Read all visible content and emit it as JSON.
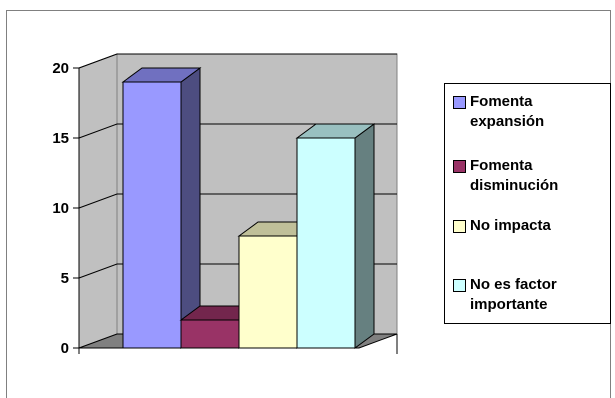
{
  "chart_data": {
    "type": "bar",
    "title": "",
    "xlabel": "",
    "ylabel": "",
    "ylim": [
      0,
      20
    ],
    "yticks": [
      "0",
      "5",
      "10",
      "15",
      "20"
    ],
    "categories": [
      "Fomenta expansión",
      "Fomenta disminución",
      "No impacta",
      "No es factor importante"
    ],
    "values": [
      19,
      2,
      8,
      15
    ],
    "grid": true,
    "legend_position": "right",
    "colors": {
      "front": [
        "#9999FF",
        "#993366",
        "#FFFFCC",
        "#CCFFFF"
      ],
      "side": [
        "#4D4D80",
        "#4D1A33",
        "#808066",
        "#668080"
      ],
      "top": [
        "#7070C0",
        "#73264D",
        "#C0C099",
        "#99C0C0"
      ],
      "wall": "#C0C0C0",
      "floor": "#808080"
    }
  },
  "legend": {
    "items": [
      {
        "label": "Fomenta expansión",
        "color": "#9999FF"
      },
      {
        "label": "Fomenta disminución",
        "color": "#993366"
      },
      {
        "label": "No impacta",
        "color": "#FFFFCC"
      },
      {
        "label": "No es factor importante",
        "color": "#CCFFFF"
      }
    ]
  }
}
